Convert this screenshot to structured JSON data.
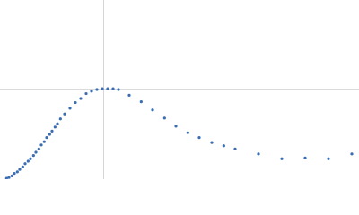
{
  "chart_data": {
    "type": "scatter",
    "x": [
      0.11,
      0.15,
      0.2,
      0.24,
      0.29,
      0.33,
      0.38,
      0.42,
      0.47,
      0.51,
      0.56,
      0.6,
      0.65,
      0.69,
      0.74,
      0.78,
      0.83,
      0.87,
      0.92,
      0.96,
      1.01,
      1.08,
      1.17,
      1.26,
      1.35,
      1.44,
      1.53,
      1.62,
      1.71,
      1.8,
      1.89,
      1.98,
      2.16,
      2.36,
      2.55,
      2.75,
      2.94,
      3.14,
      3.33,
      3.54,
      3.74,
      3.93,
      4.32,
      4.71,
      5.1,
      5.49,
      5.88
    ],
    "values": [
      0.01,
      0.02,
      0.04,
      0.07,
      0.09,
      0.12,
      0.15,
      0.19,
      0.22,
      0.25,
      0.29,
      0.33,
      0.37,
      0.42,
      0.46,
      0.51,
      0.55,
      0.59,
      0.64,
      0.68,
      0.74,
      0.8,
      0.87,
      0.94,
      0.99,
      1.05,
      1.08,
      1.1,
      1.11,
      1.11,
      1.11,
      1.1,
      1.03,
      0.95,
      0.85,
      0.75,
      0.65,
      0.57,
      0.51,
      0.45,
      0.41,
      0.37,
      0.31,
      0.25,
      0.26,
      0.25,
      0.31
    ],
    "color": "#3b6db3",
    "xlim": [
      0,
      6
    ],
    "ylim": [
      0,
      2.2
    ],
    "xline": 1.732,
    "yline": 1.104
  }
}
